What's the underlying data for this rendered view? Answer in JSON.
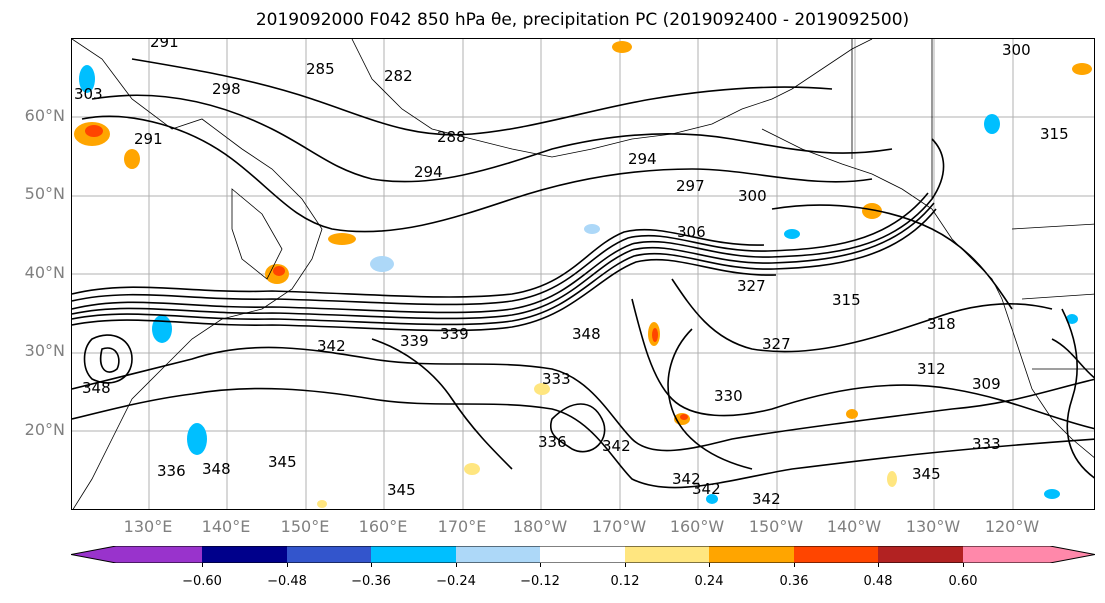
{
  "title": "2019092000 F042 850 hPa θe, precipitation PC (2019092400 - 2019092500)",
  "lat_labels": [
    "60°N",
    "50°N",
    "40°N",
    "30°N",
    "20°N"
  ],
  "lon_labels": [
    "130°E",
    "140°E",
    "150°E",
    "160°E",
    "170°E",
    "180°W",
    "170°W",
    "160°W",
    "150°W",
    "140°W",
    "130°W",
    "120°W"
  ],
  "contour_labels": [
    "291",
    "285",
    "282",
    "298",
    "288",
    "291",
    "294",
    "294",
    "297",
    "300",
    "300",
    "315",
    "306",
    "327",
    "315",
    "318",
    "309",
    "312",
    "339",
    "339",
    "348",
    "342",
    "345",
    "345",
    "336",
    "348",
    "333",
    "330",
    "336",
    "348",
    "342",
    "342",
    "342",
    "345",
    "342",
    "333",
    "303",
    "327"
  ],
  "colorbar": {
    "ticks": [
      "−0.60",
      "−0.48",
      "−0.36",
      "−0.24",
      "−0.12",
      "0.12",
      "0.24",
      "0.36",
      "0.48",
      "0.60"
    ],
    "colors": [
      "#9933cc",
      "#00008b",
      "#3355cc",
      "#00bfff",
      "#add8f8",
      "#ffffff",
      "#ffe680",
      "#ffa500",
      "#ff4500",
      "#b22222",
      "#ff88aa"
    ]
  }
}
